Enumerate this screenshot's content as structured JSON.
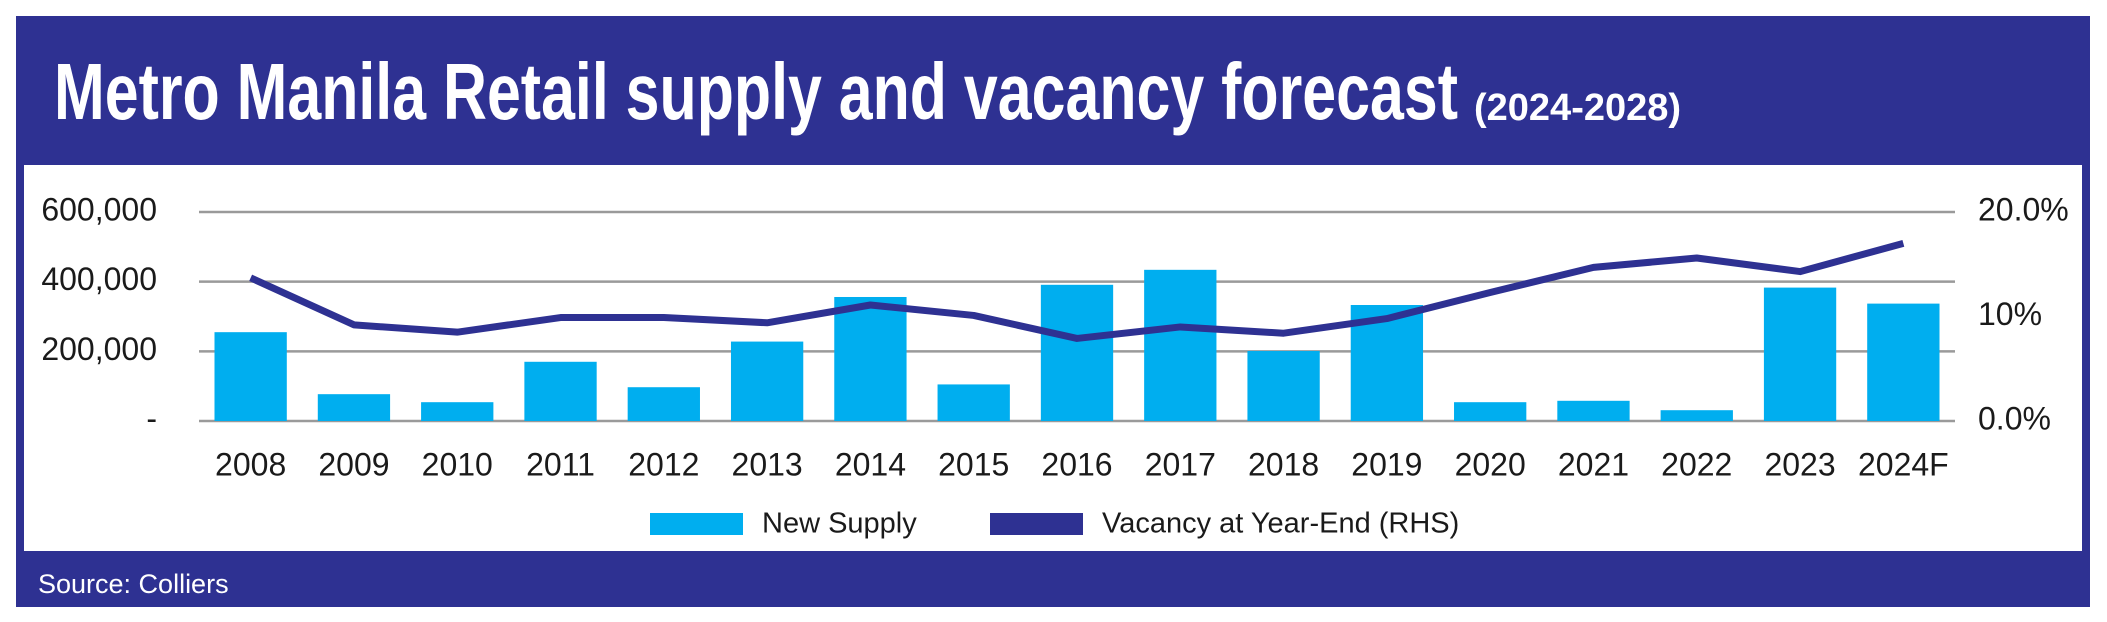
{
  "chart_data": {
    "type": "bar-line",
    "title": "Metro Manila Retail supply and vacancy forecast",
    "subtitle": "(2024-2028)",
    "source": "Source: Colliers",
    "categories": [
      "2008",
      "2009",
      "2010",
      "2011",
      "2012",
      "2013",
      "2014",
      "2015",
      "2016",
      "2017",
      "2018",
      "2019",
      "2020",
      "2021",
      "2022",
      "2023",
      "2024F"
    ],
    "series": [
      {
        "name": "New Supply",
        "type": "bar",
        "color": "#00aeef",
        "values": [
          255000,
          77000,
          54000,
          170000,
          97000,
          228000,
          356000,
          105000,
          391000,
          434000,
          201000,
          333000,
          54000,
          58000,
          31000,
          383000,
          337000
        ]
      },
      {
        "name": "Vacancy at Year-End (RHS)",
        "type": "line",
        "axis": "y2",
        "color": "#2e3192",
        "values": [
          13.7,
          9.2,
          8.5,
          9.9,
          9.9,
          9.4,
          11.1,
          10.1,
          7.9,
          9.0,
          8.4,
          9.8,
          12.3,
          14.7,
          15.6,
          14.3,
          17.0
        ]
      }
    ],
    "ylim": [
      0,
      600000
    ],
    "yticks": [
      {
        "value": 0,
        "label": "-"
      },
      {
        "value": 200000,
        "label": "200,000"
      },
      {
        "value": 400000,
        "label": "400,000"
      },
      {
        "value": 600000,
        "label": "600,000"
      }
    ],
    "y2lim": [
      0,
      20
    ],
    "y2ticks": [
      {
        "value": 0,
        "label": "0.0%"
      },
      {
        "value": 10,
        "label": "10%"
      },
      {
        "value": 20,
        "label": "20.0%"
      }
    ],
    "grid": true,
    "legend": "bottom"
  }
}
